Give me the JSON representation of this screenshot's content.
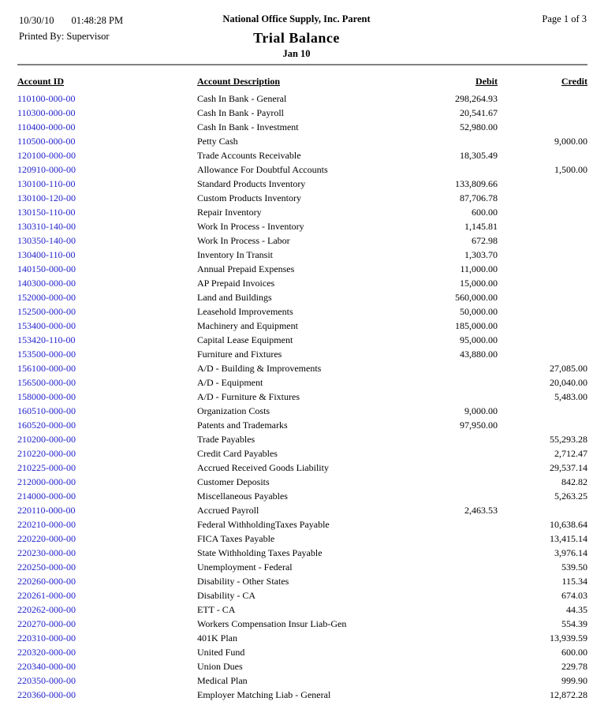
{
  "report": {
    "print_date": "10/30/10",
    "print_time": "01:48:28 PM",
    "printed_by_label": "Printed By:",
    "printed_by": "Supervisor",
    "company": "National Office Supply, Inc. Parent",
    "title": "Trial Balance",
    "period": "Jan 10",
    "page_info": "Page 1 of 3"
  },
  "colors": {
    "account_id_link": "#2222CC",
    "text": "#000000",
    "rule": "#808080",
    "background": "#FFFFFF"
  },
  "table": {
    "columns": {
      "account_id": "Account ID",
      "description": "Account Description",
      "debit": "Debit",
      "credit": "Credit"
    },
    "rows": [
      {
        "id": "110100-000-00",
        "description": "Cash In Bank - General",
        "debit": "298,264.93",
        "credit": ""
      },
      {
        "id": "110300-000-00",
        "description": "Cash In Bank - Payroll",
        "debit": "20,541.67",
        "credit": ""
      },
      {
        "id": "110400-000-00",
        "description": "Cash In Bank - Investment",
        "debit": "52,980.00",
        "credit": ""
      },
      {
        "id": "110500-000-00",
        "description": "Petty Cash",
        "debit": "",
        "credit": "9,000.00"
      },
      {
        "id": "120100-000-00",
        "description": "Trade Accounts Receivable",
        "debit": "18,305.49",
        "credit": ""
      },
      {
        "id": "120910-000-00",
        "description": "Allowance For Doubtful Accounts",
        "debit": "",
        "credit": "1,500.00"
      },
      {
        "id": "130100-110-00",
        "description": "Standard Products Inventory",
        "debit": "133,809.66",
        "credit": ""
      },
      {
        "id": "130100-120-00",
        "description": "Custom Products Inventory",
        "debit": "87,706.78",
        "credit": ""
      },
      {
        "id": "130150-110-00",
        "description": "Repair Inventory",
        "debit": "600.00",
        "credit": ""
      },
      {
        "id": "130310-140-00",
        "description": "Work In Process - Inventory",
        "debit": "1,145.81",
        "credit": ""
      },
      {
        "id": "130350-140-00",
        "description": "Work In Process - Labor",
        "debit": "672.98",
        "credit": ""
      },
      {
        "id": "130400-110-00",
        "description": "Inventory In Transit",
        "debit": "1,303.70",
        "credit": ""
      },
      {
        "id": "140150-000-00",
        "description": "Annual Prepaid Expenses",
        "debit": "11,000.00",
        "credit": ""
      },
      {
        "id": "140300-000-00",
        "description": "AP Prepaid Invoices",
        "debit": "15,000.00",
        "credit": ""
      },
      {
        "id": "152000-000-00",
        "description": "Land and Buildings",
        "debit": "560,000.00",
        "credit": ""
      },
      {
        "id": "152500-000-00",
        "description": "Leasehold Improvements",
        "debit": "50,000.00",
        "credit": ""
      },
      {
        "id": "153400-000-00",
        "description": "Machinery and Equipment",
        "debit": "185,000.00",
        "credit": ""
      },
      {
        "id": "153420-110-00",
        "description": "Capital Lease Equipment",
        "debit": "95,000.00",
        "credit": ""
      },
      {
        "id": "153500-000-00",
        "description": "Furniture and Fixtures",
        "debit": "43,880.00",
        "credit": ""
      },
      {
        "id": "156100-000-00",
        "description": "A/D - Building & Improvements",
        "debit": "",
        "credit": "27,085.00"
      },
      {
        "id": "156500-000-00",
        "description": "A/D - Equipment",
        "debit": "",
        "credit": "20,040.00"
      },
      {
        "id": "158000-000-00",
        "description": "A/D - Furniture & Fixtures",
        "debit": "",
        "credit": "5,483.00"
      },
      {
        "id": "160510-000-00",
        "description": "Organization Costs",
        "debit": "9,000.00",
        "credit": ""
      },
      {
        "id": "160520-000-00",
        "description": "Patents and Trademarks",
        "debit": "97,950.00",
        "credit": ""
      },
      {
        "id": "210200-000-00",
        "description": "Trade Payables",
        "debit": "",
        "credit": "55,293.28"
      },
      {
        "id": "210220-000-00",
        "description": "Credit Card Payables",
        "debit": "",
        "credit": "2,712.47"
      },
      {
        "id": "210225-000-00",
        "description": "Accrued Received Goods Liability",
        "debit": "",
        "credit": "29,537.14"
      },
      {
        "id": "212000-000-00",
        "description": "Customer Deposits",
        "debit": "",
        "credit": "842.82"
      },
      {
        "id": "214000-000-00",
        "description": "Miscellaneous Payables",
        "debit": "",
        "credit": "5,263.25"
      },
      {
        "id": "220110-000-00",
        "description": "Accrued Payroll",
        "debit": "2,463.53",
        "credit": ""
      },
      {
        "id": "220210-000-00",
        "description": "Federal WithholdingTaxes Payable",
        "debit": "",
        "credit": "10,638.64"
      },
      {
        "id": "220220-000-00",
        "description": "FICA Taxes Payable",
        "debit": "",
        "credit": "13,415.14"
      },
      {
        "id": "220230-000-00",
        "description": "State Withholding Taxes Payable",
        "debit": "",
        "credit": "3,976.14"
      },
      {
        "id": "220250-000-00",
        "description": "Unemployment - Federal",
        "debit": "",
        "credit": "539.50"
      },
      {
        "id": "220260-000-00",
        "description": "Disability - Other States",
        "debit": "",
        "credit": "115.34"
      },
      {
        "id": "220261-000-00",
        "description": "Disability - CA",
        "debit": "",
        "credit": "674.03"
      },
      {
        "id": "220262-000-00",
        "description": "ETT - CA",
        "debit": "",
        "credit": "44.35"
      },
      {
        "id": "220270-000-00",
        "description": "Workers Compensation Insur Liab-Gen",
        "debit": "",
        "credit": "554.39"
      },
      {
        "id": "220310-000-00",
        "description": "401K Plan",
        "debit": "",
        "credit": "13,939.59"
      },
      {
        "id": "220320-000-00",
        "description": "United Fund",
        "debit": "",
        "credit": "600.00"
      },
      {
        "id": "220340-000-00",
        "description": "Union Dues",
        "debit": "",
        "credit": "229.78"
      },
      {
        "id": "220350-000-00",
        "description": "Medical Plan",
        "debit": "",
        "credit": "999.90"
      },
      {
        "id": "220360-000-00",
        "description": "Employer Matching Liab - General",
        "debit": "",
        "credit": "12,872.28"
      }
    ]
  }
}
